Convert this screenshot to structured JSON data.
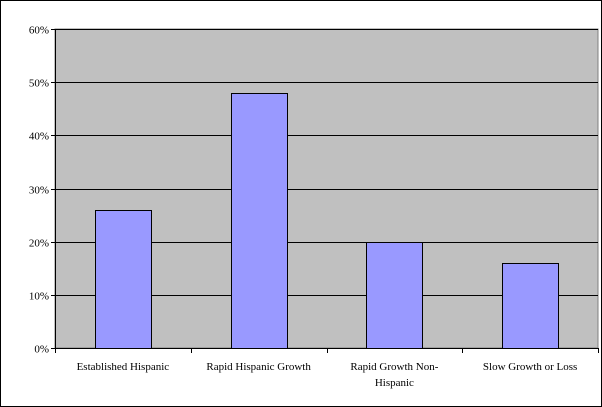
{
  "chart_data": {
    "type": "bar",
    "title": "",
    "xlabel": "",
    "ylabel": "",
    "categories": [
      [
        "Established Hispanic"
      ],
      [
        "Rapid Hispanic Growth"
      ],
      [
        "Rapid Growth Non-",
        "Hispanic"
      ],
      [
        "Slow Growth or Loss"
      ]
    ],
    "values": [
      26,
      48,
      20,
      16
    ],
    "ylim": [
      0,
      60
    ],
    "yticks": [
      0,
      10,
      20,
      30,
      40,
      50,
      60
    ],
    "ytick_labels": [
      "0%",
      "10%",
      "20%",
      "30%",
      "40%",
      "50%",
      "60%"
    ],
    "grid": true,
    "legend": "none",
    "colors": {
      "plot_background": "#c0c0c0",
      "bar_fill": "#9999ff",
      "bar_stroke": "#000000",
      "gridline": "#000000"
    }
  }
}
